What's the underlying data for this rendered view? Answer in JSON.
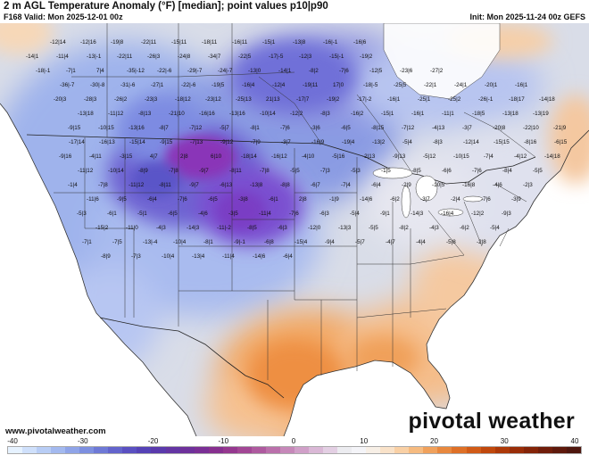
{
  "header": {
    "title": "2 m AGL Temperature Anomaly (°F) [median]; point values p10|p90",
    "valid": "F168 Valid: Mon 2025-12-01 00z",
    "init": "Init: Mon 2025-11-24 00z GEFS"
  },
  "branding": {
    "logo_text": "pivotal weather",
    "site_url": "www.pivotalweather.com"
  },
  "colorbar": {
    "tick_labels": [
      "-40",
      "-30",
      "-20",
      "-10",
      "0",
      "10",
      "20",
      "30",
      "40"
    ],
    "colors": [
      "#e6f2ff",
      "#cfe0fb",
      "#b8cdf5",
      "#a3b9ef",
      "#8fa4e8",
      "#7d8fe0",
      "#6e79d6",
      "#6364cc",
      "#5a50c1",
      "#5542b6",
      "#5a3aac",
      "#6435a3",
      "#6e319b",
      "#7a2f95",
      "#87308f",
      "#95388f",
      "#a24795",
      "#ae5a9f",
      "#ba70ab",
      "#c688b9",
      "#d0a0c8",
      "#dab8d6",
      "#e3cfe3",
      "#ececf0",
      "#f4f4f8",
      "#f7efe6",
      "#f9e2c9",
      "#f9d0a5",
      "#f6bb80",
      "#f0a15c",
      "#e8883e",
      "#de7027",
      "#d15b17",
      "#c0480d",
      "#ad3909",
      "#992d08",
      "#842408",
      "#701d0a",
      "#5e190c",
      "#4e160e"
    ]
  },
  "map": {
    "land_color": "#d9dde8",
    "ocean_color": "#ffffff",
    "warm_color": "#f29b54",
    "cold_core_color": "#7b3fd1",
    "cold_color": "#6f78e0",
    "point_values": [
      {
        "t": "-12|14"
      },
      {
        "t": "-12|16"
      },
      {
        "t": "-19|8"
      },
      {
        "t": "-22|11"
      },
      {
        "t": "-15|11"
      },
      {
        "t": "-18|11"
      },
      {
        "t": "-16|11"
      },
      {
        "t": "-15|1"
      },
      {
        "t": "-13|8"
      },
      {
        "t": "-16|-1"
      },
      {
        "t": "-16|6"
      },
      {
        "t": "-14|1"
      },
      {
        "t": "-11|4"
      },
      {
        "t": "-13|-1"
      },
      {
        "t": "-22|11"
      },
      {
        "t": "-26|3"
      },
      {
        "t": "-24|8"
      },
      {
        "t": "-34|7"
      },
      {
        "t": "-22|5"
      },
      {
        "t": "-17|-5"
      },
      {
        "t": "-12|3"
      },
      {
        "t": "-15|-1"
      },
      {
        "t": "-19|2"
      },
      {
        "t": "-18|-1"
      },
      {
        "t": "-7|1"
      },
      {
        "t": "7|4"
      },
      {
        "t": "-35|-12"
      },
      {
        "t": "-22|-6"
      },
      {
        "t": "-29|-7"
      },
      {
        "t": "-24|-7"
      },
      {
        "t": "-13|0"
      },
      {
        "t": "-14|1"
      },
      {
        "t": "-8|2"
      },
      {
        "t": "-7|6"
      },
      {
        "t": "-12|5"
      },
      {
        "t": "-23|6"
      },
      {
        "t": "-27|2"
      },
      {
        "t": "-36|-7"
      },
      {
        "t": "-30|-8"
      },
      {
        "t": "-31|-6"
      },
      {
        "t": "-27|1"
      },
      {
        "t": "-22|-6"
      },
      {
        "t": "-19|5"
      },
      {
        "t": "-16|4"
      },
      {
        "t": "-12|4"
      },
      {
        "t": "-19|11"
      },
      {
        "t": "17|0"
      },
      {
        "t": "-18|-5"
      },
      {
        "t": "-25|5"
      },
      {
        "t": "-22|1"
      },
      {
        "t": "-24|1"
      },
      {
        "t": "-20|1"
      },
      {
        "t": "-16|1"
      },
      {
        "t": "-20|3"
      },
      {
        "t": "-28|3"
      },
      {
        "t": "-26|2"
      },
      {
        "t": "-23|3"
      },
      {
        "t": "-18|12"
      },
      {
        "t": "-23|12"
      },
      {
        "t": "-25|13"
      },
      {
        "t": "21|13"
      },
      {
        "t": "-17|7"
      },
      {
        "t": "-19|2"
      },
      {
        "t": "-17|-2"
      },
      {
        "t": "-16|1"
      },
      {
        "t": "-25|1"
      },
      {
        "t": "-25|2"
      },
      {
        "t": "-26|-1"
      },
      {
        "t": "-18|17"
      },
      {
        "t": "-14|18"
      },
      {
        "t": "-13|18"
      },
      {
        "t": "-11|12"
      },
      {
        "t": "-8|13"
      },
      {
        "t": "-21|10"
      },
      {
        "t": "-16|16"
      },
      {
        "t": "-13|16"
      },
      {
        "t": "-10|14"
      },
      {
        "t": "-12|2"
      },
      {
        "t": "-8|3"
      },
      {
        "t": "-16|2"
      },
      {
        "t": "-15|1"
      },
      {
        "t": "-16|1"
      },
      {
        "t": "-11|1"
      },
      {
        "t": "-18|5"
      },
      {
        "t": "-13|18"
      },
      {
        "t": "-13|19"
      },
      {
        "t": "-9|15"
      },
      {
        "t": "-10|15"
      },
      {
        "t": "-13|16"
      },
      {
        "t": "-8|7"
      },
      {
        "t": "-7|12"
      },
      {
        "t": "-5|7"
      },
      {
        "t": "-8|1"
      },
      {
        "t": "-7|6"
      },
      {
        "t": "-3|6"
      },
      {
        "t": "-6|5"
      },
      {
        "t": "-8|15"
      },
      {
        "t": "-7|12"
      },
      {
        "t": "-4|13"
      },
      {
        "t": "-3|7"
      },
      {
        "t": "-20|8"
      },
      {
        "t": "-22|10"
      },
      {
        "t": "-21|9"
      },
      {
        "t": "-17|14"
      },
      {
        "t": "-16|13"
      },
      {
        "t": "-15|14"
      },
      {
        "t": "-9|15"
      },
      {
        "t": "-7|13"
      },
      {
        "t": "-9|12"
      },
      {
        "t": "-7|9"
      },
      {
        "t": "-3|7"
      },
      {
        "t": "-16|9"
      },
      {
        "t": "-19|4"
      },
      {
        "t": "-13|2"
      },
      {
        "t": "-5|4"
      },
      {
        "t": "-8|3"
      },
      {
        "t": "-12|14"
      },
      {
        "t": "-15|15"
      },
      {
        "t": "-8|16"
      },
      {
        "t": "-6|15"
      },
      {
        "t": "-9|16"
      },
      {
        "t": "-4|11"
      },
      {
        "t": "-3|15"
      },
      {
        "t": "4|7"
      },
      {
        "t": "2|8"
      },
      {
        "t": "6|10"
      },
      {
        "t": "-18|14"
      },
      {
        "t": "-16|12"
      },
      {
        "t": "-4|10"
      },
      {
        "t": "-5|16"
      },
      {
        "t": "-2|13"
      },
      {
        "t": "-9|13"
      },
      {
        "t": "-5|12"
      },
      {
        "t": "-10|15"
      },
      {
        "t": "-7|4"
      },
      {
        "t": "-4|12"
      },
      {
        "t": "-14|18"
      },
      {
        "t": "-11|12"
      },
      {
        "t": "-10|14"
      },
      {
        "t": "-8|9"
      },
      {
        "t": "-7|8"
      },
      {
        "t": "-9|7"
      },
      {
        "t": "-8|11"
      },
      {
        "t": "-7|8"
      },
      {
        "t": "-5|5"
      },
      {
        "t": "-7|3"
      },
      {
        "t": "-5|3"
      },
      {
        "t": "-1|5"
      },
      {
        "t": "-8|5"
      },
      {
        "t": "-6|6"
      },
      {
        "t": "-7|6"
      },
      {
        "t": "-8|4"
      },
      {
        "t": "-5|5"
      },
      {
        "t": "-1|4"
      },
      {
        "t": "-7|8"
      },
      {
        "t": "-11|12"
      },
      {
        "t": "-8|11"
      },
      {
        "t": "-9|7"
      },
      {
        "t": "-6|13"
      },
      {
        "t": "-13|8"
      },
      {
        "t": "-8|8"
      },
      {
        "t": "-6|7"
      },
      {
        "t": "-7|4"
      },
      {
        "t": "-6|4"
      },
      {
        "t": "-2|9"
      },
      {
        "t": "-10|5"
      },
      {
        "t": "-16|8"
      },
      {
        "t": "-4|6"
      },
      {
        "t": "-2|3"
      },
      {
        "t": "-11|6"
      },
      {
        "t": "-9|5"
      },
      {
        "t": "-6|4"
      },
      {
        "t": "-7|6"
      },
      {
        "t": "-6|5"
      },
      {
        "t": "-3|8"
      },
      {
        "t": "-6|1"
      },
      {
        "t": "2|8"
      },
      {
        "t": "-1|9"
      },
      {
        "t": "-14|6"
      },
      {
        "t": "-6|2"
      },
      {
        "t": "-3|7"
      },
      {
        "t": "-2|4"
      },
      {
        "t": "-7|6"
      },
      {
        "t": "-3|9"
      },
      {
        "t": "-5|3"
      },
      {
        "t": "-6|1"
      },
      {
        "t": "-5|1"
      },
      {
        "t": "-6|5"
      },
      {
        "t": "-4|6"
      },
      {
        "t": "-3|5"
      },
      {
        "t": "-11|4"
      },
      {
        "t": "-7|6"
      },
      {
        "t": "-6|3"
      },
      {
        "t": "-5|4"
      },
      {
        "t": "-9|1"
      },
      {
        "t": "-14|3"
      },
      {
        "t": "-16|4"
      },
      {
        "t": "-12|2"
      },
      {
        "t": "-9|3"
      },
      {
        "t": "-15|2"
      },
      {
        "t": "-11|0"
      },
      {
        "t": "-4|3"
      },
      {
        "t": "-14|3"
      },
      {
        "t": "-11|-2"
      },
      {
        "t": "-8|5"
      },
      {
        "t": "-6|3"
      },
      {
        "t": "-12|0"
      },
      {
        "t": "-13|3"
      },
      {
        "t": "-5|5"
      },
      {
        "t": "-8|2"
      },
      {
        "t": "-4|3"
      },
      {
        "t": "-6|2"
      },
      {
        "t": "-5|4"
      },
      {
        "t": "-7|1"
      },
      {
        "t": "-7|5"
      },
      {
        "t": "-13|-4"
      },
      {
        "t": "-10|4"
      },
      {
        "t": "-8|1"
      },
      {
        "t": "-9|-1"
      },
      {
        "t": "-6|8"
      },
      {
        "t": "-15|4"
      },
      {
        "t": "-9|4"
      },
      {
        "t": "-5|7"
      },
      {
        "t": "-4|7"
      },
      {
        "t": "-4|4"
      },
      {
        "t": "-5|8"
      },
      {
        "t": "-2|8"
      },
      {
        "t": "-8|9"
      },
      {
        "t": "-7|3"
      },
      {
        "t": "-10|4"
      },
      {
        "t": "-13|4"
      },
      {
        "t": "-11|4"
      },
      {
        "t": "-14|6"
      },
      {
        "t": "-6|4"
      }
    ]
  }
}
